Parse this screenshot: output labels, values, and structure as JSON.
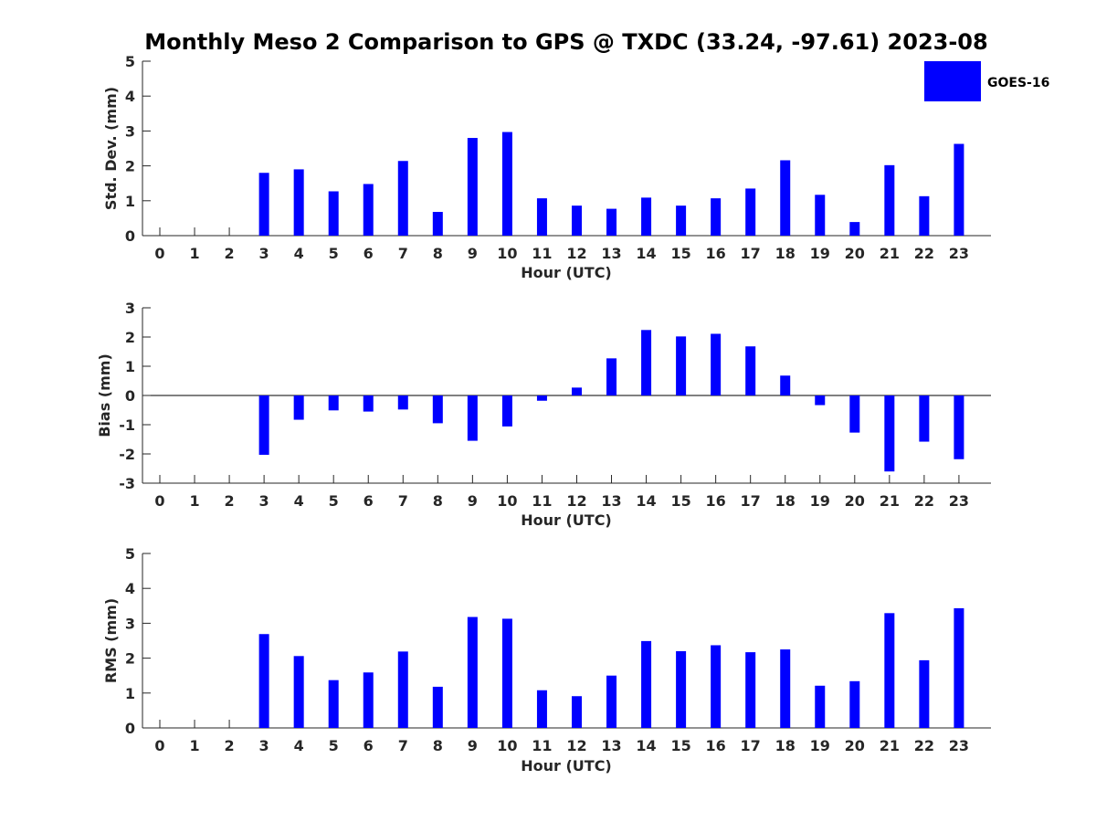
{
  "title": "Monthly Meso 2 Comparison to GPS @ TXDC (33.24, -97.61) 2023-08",
  "legend": {
    "label": "GOES-16",
    "color": "#0000ff"
  },
  "colors": {
    "bar": "#0000ff",
    "axis": "#262626"
  },
  "chart_data": [
    {
      "type": "bar",
      "series_name": "GOES-16",
      "categories": [
        0,
        1,
        2,
        3,
        4,
        5,
        6,
        7,
        8,
        9,
        10,
        11,
        12,
        13,
        14,
        15,
        16,
        17,
        18,
        19,
        20,
        21,
        22,
        23
      ],
      "values": [
        null,
        null,
        null,
        1.8,
        1.9,
        1.27,
        1.48,
        2.14,
        0.68,
        2.8,
        2.97,
        1.07,
        0.86,
        0.77,
        1.09,
        0.86,
        1.07,
        1.35,
        2.16,
        1.17,
        0.39,
        2.02,
        1.13,
        2.63
      ],
      "xlabel": "Hour (UTC)",
      "ylabel": "Std. Dev. (mm)",
      "ylim": [
        0,
        5
      ],
      "yticks": [
        0,
        1,
        2,
        3,
        4,
        5
      ]
    },
    {
      "type": "bar",
      "series_name": "GOES-16",
      "categories": [
        0,
        1,
        2,
        3,
        4,
        5,
        6,
        7,
        8,
        9,
        10,
        11,
        12,
        13,
        14,
        15,
        16,
        17,
        18,
        19,
        20,
        21,
        22,
        23
      ],
      "values": [
        null,
        null,
        null,
        -2.03,
        -0.83,
        -0.51,
        -0.55,
        -0.48,
        -0.95,
        -1.55,
        -1.06,
        -0.18,
        0.27,
        1.27,
        2.24,
        2.02,
        2.11,
        1.68,
        0.68,
        -0.33,
        -1.27,
        -2.6,
        -1.58,
        -2.18
      ],
      "xlabel": "Hour (UTC)",
      "ylabel": "Bias (mm)",
      "ylim": [
        -3,
        3
      ],
      "yticks": [
        -3,
        -2,
        -1,
        0,
        1,
        2,
        3
      ]
    },
    {
      "type": "bar",
      "series_name": "GOES-16",
      "categories": [
        0,
        1,
        2,
        3,
        4,
        5,
        6,
        7,
        8,
        9,
        10,
        11,
        12,
        13,
        14,
        15,
        16,
        17,
        18,
        19,
        20,
        21,
        22,
        23
      ],
      "values": [
        null,
        null,
        null,
        2.69,
        2.06,
        1.37,
        1.59,
        2.19,
        1.18,
        3.18,
        3.13,
        1.08,
        0.91,
        1.5,
        2.49,
        2.2,
        2.37,
        2.17,
        2.25,
        1.21,
        1.34,
        3.29,
        1.94,
        3.43
      ],
      "xlabel": "Hour (UTC)",
      "ylabel": "RMS (mm)",
      "ylim": [
        0,
        5
      ],
      "yticks": [
        0,
        1,
        2,
        3,
        4,
        5
      ]
    }
  ]
}
